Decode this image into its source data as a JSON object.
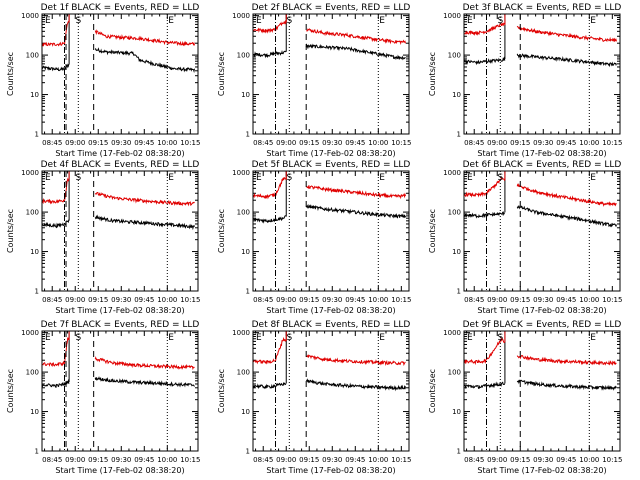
{
  "chart_data": {
    "type": "line",
    "grid": false,
    "colors": {
      "events": "#000000",
      "lld": "#e00000"
    },
    "x_axis": {
      "label": "Start Time (17-Feb-02 08:38:20)",
      "start_time": "08:38:20",
      "range": [
        "08:38:20",
        "10:20:00"
      ],
      "ticks": [
        "08:45",
        "09:00",
        "09:15",
        "09:30",
        "09:45",
        "10:00",
        "10:15"
      ]
    },
    "y_axis": {
      "label": "Counts/sec",
      "scale": "log",
      "range": [
        1,
        1100
      ],
      "ticks": [
        "1",
        "10",
        "100",
        "1000"
      ]
    },
    "markers": {
      "s_label": "S",
      "e_label": "E"
    },
    "panels": [
      {
        "title": "Det 1f BLACK = Events, RED = LLD",
        "data_gap": [
          "08:56:00",
          "09:13:00"
        ],
        "markers": {
          "e_left": "08:38:20",
          "s": "09:02:00",
          "e_right": "10:00:00",
          "dashed": [
            "08:54:00",
            "09:12:00"
          ],
          "dashdot": "08:53:00"
        },
        "series": [
          {
            "name": "Events",
            "color": "#000000",
            "x": [
              "08:38:20",
              "08:50:00",
              "08:53:00",
              "08:55:00",
              "09:13:00",
              "09:20:00",
              "09:30:00",
              "09:38:00",
              "09:42:00",
              "09:55:00",
              "10:05:00",
              "10:18:00"
            ],
            "y": [
              48,
              43,
              45,
              55,
              140,
              120,
              115,
              110,
              75,
              55,
              45,
              42
            ]
          },
          {
            "name": "LLD",
            "color": "#e00000",
            "x": [
              "08:38:20",
              "08:50:00",
              "08:53:00",
              "08:55:00",
              "09:13:00",
              "09:20:00",
              "09:30:00",
              "09:40:00",
              "09:50:00",
              "10:00:00",
              "10:10:00",
              "10:18:00"
            ],
            "y": [
              185,
              190,
              200,
              700,
              400,
              300,
              280,
              270,
              240,
              210,
              195,
              190
            ]
          }
        ]
      },
      {
        "title": "Det 2f BLACK = Events, RED = LLD",
        "data_gap": [
          "09:00:00",
          "09:13:00"
        ],
        "markers": {
          "e_left": "08:38:20",
          "s": "09:02:00",
          "e_right": "10:00:00",
          "dashed": [
            "09:13:00"
          ],
          "dashdot": "08:53:00"
        },
        "series": [
          {
            "name": "Events",
            "color": "#000000",
            "x": [
              "08:38:20",
              "08:48:00",
              "08:53:00",
              "08:58:00",
              "09:13:00",
              "09:25:00",
              "09:40:00",
              "09:55:00",
              "10:10:00",
              "10:18:00"
            ],
            "y": [
              105,
              100,
              110,
              115,
              170,
              160,
              145,
              115,
              90,
              85
            ]
          },
          {
            "name": "LLD",
            "color": "#e00000",
            "x": [
              "08:38:20",
              "08:48:00",
              "08:53:00",
              "08:58:00",
              "09:13:00",
              "09:25:00",
              "09:40:00",
              "09:55:00",
              "10:10:00",
              "10:18:00"
            ],
            "y": [
              440,
              420,
              450,
              700,
              450,
              360,
              320,
              260,
              220,
              215
            ]
          }
        ]
      },
      {
        "title": "Det 3f BLACK = Events, RED = LLD",
        "data_gap": [
          "09:05:00",
          "09:13:00"
        ],
        "markers": {
          "e_left": "08:38:20",
          "s": "09:02:00",
          "e_right": "10:00:00",
          "dashed": [
            "09:15:00"
          ],
          "dashdot": "08:53:00"
        },
        "series": [
          {
            "name": "Events",
            "color": "#000000",
            "x": [
              "08:38:20",
              "08:48:00",
              "08:53:00",
              "09:03:00",
              "09:13:00",
              "09:25:00",
              "09:40:00",
              "09:55:00",
              "10:10:00",
              "10:18:00"
            ],
            "y": [
              70,
              65,
              70,
              75,
              100,
              90,
              80,
              70,
              60,
              58
            ]
          },
          {
            "name": "LLD",
            "color": "#e00000",
            "x": [
              "08:38:20",
              "08:48:00",
              "08:53:00",
              "09:03:00",
              "09:13:00",
              "09:25:00",
              "09:40:00",
              "09:55:00",
              "10:10:00",
              "10:18:00"
            ],
            "y": [
              380,
              370,
              400,
              600,
              500,
              400,
              330,
              280,
              245,
              240
            ]
          }
        ]
      },
      {
        "title": "Det 4f BLACK = Events, RED = LLD",
        "data_gap": [
          "08:56:00",
          "09:13:00"
        ],
        "markers": {
          "e_left": "08:38:20",
          "s": "09:02:00",
          "e_right": "10:00:00",
          "dashed": [
            "08:54:00",
            "09:12:00"
          ],
          "dashdot": "08:53:00"
        },
        "series": [
          {
            "name": "Events",
            "color": "#000000",
            "x": [
              "08:38:20",
              "08:48:00",
              "08:53:00",
              "08:55:00",
              "09:13:00",
              "09:25:00",
              "09:40:00",
              "09:55:00",
              "10:10:00",
              "10:18:00"
            ],
            "y": [
              48,
              45,
              50,
              60,
              75,
              60,
              55,
              50,
              45,
              42
            ]
          },
          {
            "name": "LLD",
            "color": "#e00000",
            "x": [
              "08:38:20",
              "08:48:00",
              "08:53:00",
              "08:55:00",
              "09:13:00",
              "09:25:00",
              "09:40:00",
              "09:55:00",
              "10:10:00",
              "10:18:00"
            ],
            "y": [
              190,
              185,
              200,
              700,
              300,
              230,
              200,
              180,
              165,
              165
            ]
          }
        ]
      },
      {
        "title": "Det 5f BLACK = Events, RED = LLD",
        "data_gap": [
          "09:00:00",
          "09:13:00"
        ],
        "markers": {
          "e_left": "08:38:20",
          "s": "09:02:00",
          "e_right": "10:00:00",
          "dashed": [
            "09:13:00"
          ],
          "dashdot": "08:53:00"
        },
        "series": [
          {
            "name": "Events",
            "color": "#000000",
            "x": [
              "08:38:20",
              "08:48:00",
              "08:53:00",
              "08:58:00",
              "09:13:00",
              "09:25:00",
              "09:40:00",
              "09:55:00",
              "10:10:00",
              "10:18:00"
            ],
            "y": [
              65,
              60,
              65,
              70,
              140,
              120,
              105,
              90,
              80,
              78
            ]
          },
          {
            "name": "LLD",
            "color": "#e00000",
            "x": [
              "08:38:20",
              "08:48:00",
              "08:53:00",
              "08:58:00",
              "09:13:00",
              "09:25:00",
              "09:40:00",
              "09:55:00",
              "10:10:00",
              "10:18:00"
            ],
            "y": [
              260,
              250,
              280,
              700,
              450,
              380,
              330,
              280,
              250,
              260
            ]
          }
        ]
      },
      {
        "title": "Det 6f BLACK = Events, RED = LLD",
        "data_gap": [
          "09:05:00",
          "09:13:00"
        ],
        "markers": {
          "e_left": "08:38:20",
          "s": "09:02:00",
          "e_right": "10:00:00",
          "dashed": [
            "09:15:00"
          ],
          "dashdot": "08:53:00"
        },
        "series": [
          {
            "name": "Events",
            "color": "#000000",
            "x": [
              "08:38:20",
              "08:48:00",
              "08:53:00",
              "09:03:00",
              "09:13:00",
              "09:25:00",
              "09:40:00",
              "09:55:00",
              "10:10:00",
              "10:18:00"
            ],
            "y": [
              85,
              80,
              85,
              90,
              140,
              100,
              80,
              65,
              50,
              45
            ]
          },
          {
            "name": "LLD",
            "color": "#e00000",
            "x": [
              "08:38:20",
              "08:48:00",
              "08:53:00",
              "09:03:00",
              "09:13:00",
              "09:25:00",
              "09:40:00",
              "09:55:00",
              "10:10:00",
              "10:18:00"
            ],
            "y": [
              280,
              270,
              300,
              700,
              480,
              330,
              250,
              200,
              160,
              155
            ]
          }
        ]
      },
      {
        "title": "Det 7f BLACK = Events, RED = LLD",
        "data_gap": [
          "08:56:00",
          "09:13:00"
        ],
        "markers": {
          "e_left": "08:38:20",
          "s": "09:02:00",
          "e_right": "10:00:00",
          "dashed": [
            "08:54:00",
            "09:12:00"
          ],
          "dashdot": "08:53:00"
        },
        "series": [
          {
            "name": "Events",
            "color": "#000000",
            "x": [
              "08:38:20",
              "08:48:00",
              "08:53:00",
              "08:55:00",
              "09:13:00",
              "09:25:00",
              "09:40:00",
              "09:55:00",
              "10:10:00",
              "10:18:00"
            ],
            "y": [
              48,
              45,
              50,
              55,
              70,
              60,
              55,
              52,
              48,
              47
            ]
          },
          {
            "name": "LLD",
            "color": "#e00000",
            "x": [
              "08:38:20",
              "08:48:00",
              "08:53:00",
              "08:55:00",
              "09:13:00",
              "09:25:00",
              "09:40:00",
              "09:55:00",
              "10:10:00",
              "10:18:00"
            ],
            "y": [
              160,
              155,
              170,
              700,
              220,
              170,
              150,
              140,
              135,
              130
            ]
          }
        ]
      },
      {
        "title": "Det 8f BLACK = Events, RED = LLD",
        "data_gap": [
          "09:00:00",
          "09:13:00"
        ],
        "markers": {
          "e_left": "08:38:20",
          "s": "09:02:00",
          "e_right": "10:00:00",
          "dashed": [
            "09:13:00"
          ],
          "dashdot": "08:53:00"
        },
        "series": [
          {
            "name": "Events",
            "color": "#000000",
            "x": [
              "08:38:20",
              "08:48:00",
              "08:53:00",
              "08:58:00",
              "09:13:00",
              "09:25:00",
              "09:40:00",
              "09:55:00",
              "10:10:00",
              "10:18:00"
            ],
            "y": [
              45,
              42,
              45,
              50,
              60,
              50,
              45,
              42,
              40,
              40
            ]
          },
          {
            "name": "LLD",
            "color": "#e00000",
            "x": [
              "08:38:20",
              "08:48:00",
              "08:53:00",
              "08:58:00",
              "09:13:00",
              "09:25:00",
              "09:40:00",
              "09:55:00",
              "10:10:00",
              "10:18:00"
            ],
            "y": [
              190,
              180,
              200,
              700,
              260,
              210,
              190,
              180,
              170,
              170
            ]
          }
        ]
      },
      {
        "title": "Det 9f BLACK = Events, RED = LLD",
        "data_gap": [
          "09:05:00",
          "09:13:00"
        ],
        "markers": {
          "e_left": "08:38:20",
          "s": "09:02:00",
          "e_right": "10:00:00",
          "dashed": [
            "09:15:00"
          ],
          "dashdot": "08:53:00"
        },
        "series": [
          {
            "name": "Events",
            "color": "#000000",
            "x": [
              "08:38:20",
              "08:48:00",
              "08:53:00",
              "09:03:00",
              "09:13:00",
              "09:25:00",
              "09:40:00",
              "09:55:00",
              "10:10:00",
              "10:18:00"
            ],
            "y": [
              45,
              42,
              45,
              50,
              60,
              50,
              45,
              42,
              40,
              40
            ]
          },
          {
            "name": "LLD",
            "color": "#e00000",
            "x": [
              "08:38:20",
              "08:48:00",
              "08:53:00",
              "09:03:00",
              "09:13:00",
              "09:25:00",
              "09:40:00",
              "09:55:00",
              "10:10:00",
              "10:18:00"
            ],
            "y": [
              190,
              180,
              200,
              700,
              260,
              210,
              190,
              180,
              170,
              170
            ]
          }
        ]
      }
    ]
  }
}
